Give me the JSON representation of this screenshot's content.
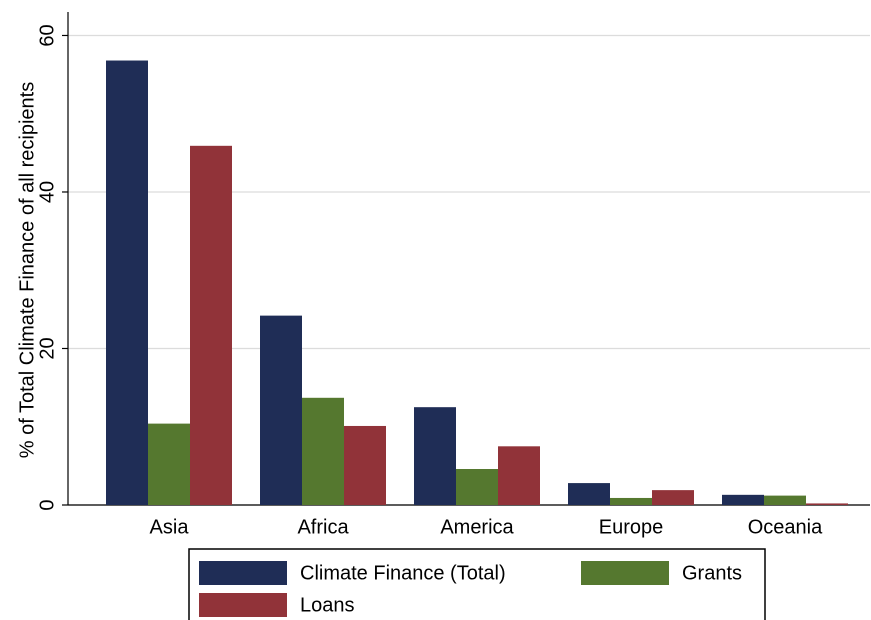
{
  "chart_data": {
    "type": "bar",
    "y_label": "% of Total Climate Finance of all recipients",
    "categories": [
      "Asia",
      "Africa",
      "America",
      "Europe",
      "Oceania"
    ],
    "series": [
      {
        "name": "Climate Finance (Total)",
        "color": "#1f2d56",
        "values": [
          56.8,
          24.2,
          12.5,
          2.8,
          1.3
        ]
      },
      {
        "name": "Grants",
        "color": "#55782f",
        "values": [
          10.4,
          13.7,
          4.6,
          0.9,
          1.2
        ]
      },
      {
        "name": "Loans",
        "color": "#913339",
        "values": [
          45.9,
          10.1,
          7.5,
          1.9,
          0.2
        ]
      }
    ],
    "ylim": [
      0,
      63
    ],
    "yticks": [
      0,
      20,
      40,
      60
    ],
    "grid": true
  }
}
